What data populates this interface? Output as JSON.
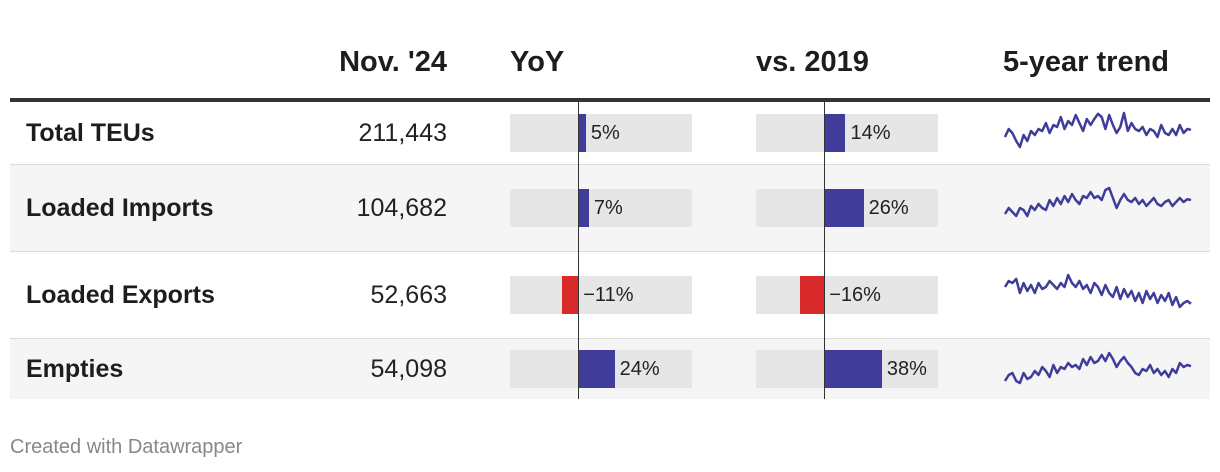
{
  "header": {
    "col_value": "Nov. '24",
    "col_yoy": "YoY",
    "col_vs2019": "vs. 2019",
    "col_trend": "5-year trend"
  },
  "colors": {
    "positive": "#3f3d99",
    "negative": "#d82a2a",
    "bar_bg": "#e6e6e6",
    "sparkline": "#3f3d99"
  },
  "chart_data": {
    "type": "table",
    "columns": [
      "",
      "Nov. '24",
      "YoY",
      "vs. 2019",
      "5-year trend"
    ],
    "bar_domain": [
      -0.45,
      0.75
    ],
    "rows": [
      {
        "label": "Total TEUs",
        "value": "211,443",
        "yoy": 0.05,
        "yoy_label": "5%",
        "vs2019": 0.14,
        "vs2019_label": "14%",
        "trend": [
          0.4,
          0.6,
          0.5,
          0.3,
          0.15,
          0.45,
          0.3,
          0.55,
          0.45,
          0.6,
          0.55,
          0.75,
          0.5,
          0.7,
          0.65,
          0.9,
          0.6,
          0.8,
          0.7,
          0.95,
          0.75,
          0.55,
          0.85,
          0.7,
          0.85,
          0.98,
          0.9,
          0.6,
          0.95,
          0.7,
          0.5,
          0.65,
          1.0,
          0.55,
          0.75,
          0.6,
          0.55,
          0.65,
          0.45,
          0.6,
          0.55,
          0.4,
          0.7,
          0.5,
          0.45,
          0.6,
          0.45,
          0.7,
          0.5,
          0.6,
          0.58
        ]
      },
      {
        "label": "Loaded Imports",
        "value": "104,682",
        "yoy": 0.07,
        "yoy_label": "7%",
        "vs2019": 0.26,
        "vs2019_label": "26%",
        "trend": [
          0.35,
          0.5,
          0.4,
          0.3,
          0.5,
          0.45,
          0.3,
          0.55,
          0.45,
          0.6,
          0.5,
          0.45,
          0.7,
          0.55,
          0.75,
          0.6,
          0.8,
          0.65,
          0.85,
          0.7,
          0.6,
          0.8,
          0.75,
          0.9,
          0.75,
          0.8,
          0.7,
          0.95,
          1.0,
          0.75,
          0.5,
          0.7,
          0.85,
          0.7,
          0.65,
          0.75,
          0.6,
          0.7,
          0.55,
          0.65,
          0.75,
          0.6,
          0.55,
          0.65,
          0.7,
          0.55,
          0.65,
          0.75,
          0.65,
          0.72,
          0.7
        ]
      },
      {
        "label": "Loaded Exports",
        "value": "52,663",
        "yoy": -0.11,
        "yoy_label": "−11%",
        "vs2019": -0.16,
        "vs2019_label": "−16%",
        "trend": [
          0.7,
          0.85,
          0.8,
          0.9,
          0.55,
          0.8,
          0.6,
          0.75,
          0.55,
          0.8,
          0.65,
          0.7,
          0.85,
          0.75,
          0.65,
          0.8,
          0.7,
          1.0,
          0.8,
          0.7,
          0.85,
          0.65,
          0.75,
          0.55,
          0.8,
          0.7,
          0.5,
          0.75,
          0.55,
          0.45,
          0.7,
          0.4,
          0.65,
          0.45,
          0.6,
          0.35,
          0.55,
          0.3,
          0.6,
          0.4,
          0.55,
          0.3,
          0.5,
          0.35,
          0.55,
          0.25,
          0.45,
          0.2,
          0.3,
          0.35,
          0.28
        ]
      },
      {
        "label": "Empties",
        "value": "54,098",
        "yoy": 0.24,
        "yoy_label": "24%",
        "vs2019": 0.38,
        "vs2019_label": "38%",
        "trend": [
          0.2,
          0.35,
          0.4,
          0.2,
          0.15,
          0.4,
          0.25,
          0.3,
          0.45,
          0.35,
          0.55,
          0.45,
          0.3,
          0.6,
          0.4,
          0.55,
          0.5,
          0.65,
          0.55,
          0.6,
          0.5,
          0.75,
          0.6,
          0.8,
          0.65,
          0.7,
          0.85,
          0.7,
          0.9,
          0.75,
          0.55,
          0.7,
          0.8,
          0.65,
          0.55,
          0.4,
          0.35,
          0.5,
          0.45,
          0.6,
          0.4,
          0.5,
          0.35,
          0.45,
          0.3,
          0.5,
          0.4,
          0.65,
          0.55,
          0.6,
          0.57
        ]
      }
    ]
  },
  "footer": "Created with Datawrapper"
}
